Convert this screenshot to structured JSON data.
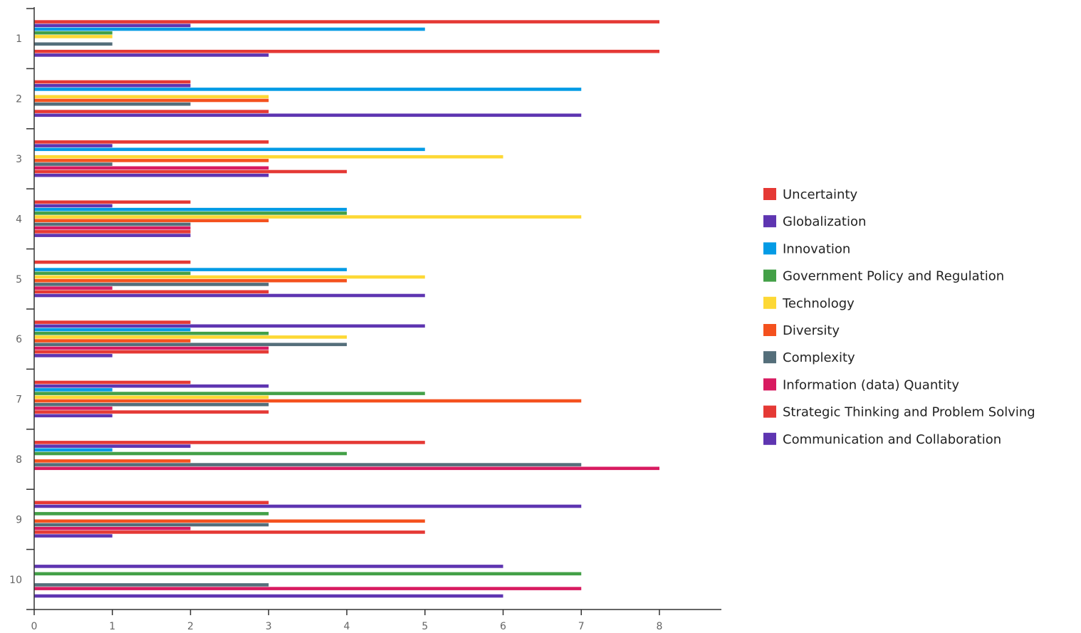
{
  "chart_data": {
    "type": "bar",
    "orientation": "horizontal",
    "title": "",
    "xlabel": "",
    "ylabel": "",
    "xlim": [
      0,
      8
    ],
    "x_ticks": [
      "0",
      "1",
      "2",
      "3",
      "4",
      "5",
      "6",
      "7",
      "8"
    ],
    "categories": [
      "1",
      "2",
      "3",
      "4",
      "5",
      "6",
      "7",
      "8",
      "9",
      "10"
    ],
    "grid": false,
    "legend_position": "right",
    "series": [
      {
        "name": "Uncertainty",
        "color": "#E53935",
        "values": [
          8,
          2,
          3,
          2,
          2,
          2,
          2,
          5,
          3,
          0
        ]
      },
      {
        "name": "Globalization",
        "color": "#5E35B1",
        "values": [
          2,
          2,
          1,
          1,
          0,
          5,
          3,
          2,
          7,
          6
        ]
      },
      {
        "name": "Innovation",
        "color": "#039BE5",
        "values": [
          5,
          7,
          5,
          4,
          4,
          2,
          1,
          1,
          0,
          0
        ]
      },
      {
        "name": "Government Policy and Regulation",
        "color": "#43A047",
        "values": [
          1,
          0,
          0,
          4,
          2,
          3,
          5,
          4,
          3,
          7
        ]
      },
      {
        "name": "Technology",
        "color": "#FDD835",
        "values": [
          1,
          3,
          6,
          7,
          5,
          4,
          3,
          0,
          0,
          0
        ]
      },
      {
        "name": "Diversity",
        "color": "#F4511E",
        "values": [
          0,
          3,
          3,
          3,
          4,
          2,
          7,
          2,
          5,
          0
        ]
      },
      {
        "name": "Complexity",
        "color": "#546E7A",
        "values": [
          1,
          2,
          1,
          2,
          3,
          4,
          3,
          7,
          3,
          3
        ]
      },
      {
        "name": "Information (data) Quantity",
        "color": "#D81B60",
        "values": [
          0,
          0,
          3,
          2,
          1,
          3,
          1,
          8,
          2,
          7
        ]
      },
      {
        "name": "Strategic Thinking and Problem Solving",
        "color": "#E53935",
        "values": [
          8,
          3,
          4,
          2,
          3,
          3,
          3,
          0,
          5,
          0
        ]
      },
      {
        "name": "Communication and Collaboration",
        "color": "#5E35B1",
        "values": [
          3,
          7,
          3,
          2,
          5,
          1,
          1,
          0,
          1,
          6
        ]
      }
    ]
  }
}
